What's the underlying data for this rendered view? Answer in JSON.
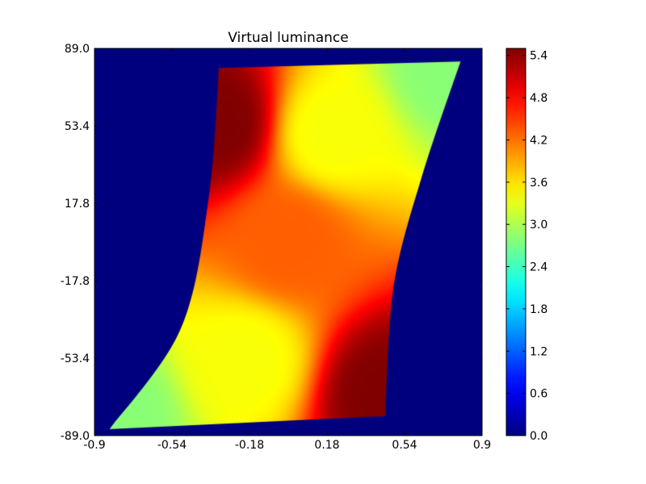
{
  "chart_data": {
    "type": "heatmap",
    "title": "Virtual luminance",
    "xlabel": "",
    "ylabel": "",
    "xlim": [
      -0.9,
      0.9
    ],
    "ylim": [
      -89.0,
      89.0
    ],
    "x_ticks": [
      "-0.9",
      "-0.54",
      "-0.18",
      "0.18",
      "0.54",
      "0.9"
    ],
    "y_ticks": [
      "89.0",
      "53.4",
      "17.8",
      "-17.8",
      "-53.4",
      "-89.0"
    ],
    "background_value": 0.0,
    "colormap": "jet",
    "colorbar": {
      "min": 0.0,
      "max": 5.5,
      "ticks": [
        "0.0",
        "0.6",
        "1.2",
        "1.8",
        "2.4",
        "3.0",
        "3.6",
        "4.2",
        "4.8",
        "5.4"
      ]
    },
    "region": {
      "left_edge": [
        [
          -0.32,
          84
        ],
        [
          -0.37,
          20
        ],
        [
          -0.5,
          -40
        ],
        [
          -0.83,
          -86
        ]
      ],
      "right_edge": [
        [
          0.8,
          83
        ],
        [
          0.62,
          30
        ],
        [
          0.49,
          -20
        ],
        [
          0.45,
          -78
        ]
      ],
      "top_edge": [
        [
          -0.32,
          80
        ],
        [
          0.8,
          83
        ]
      ],
      "bottom_edge": [
        [
          -0.83,
          -86
        ],
        [
          0.45,
          -80
        ]
      ]
    },
    "annotations": [
      {
        "x": -0.33,
        "y": 55,
        "value": 5.5
      },
      {
        "x": 0.45,
        "y": -70,
        "value": 5.5
      },
      {
        "x": 0.75,
        "y": 80,
        "value": 2.8
      },
      {
        "x": -0.8,
        "y": -80,
        "value": 2.8
      },
      {
        "x": 0.2,
        "y": 50,
        "value": 3.4
      },
      {
        "x": -0.2,
        "y": -55,
        "value": 3.4
      },
      {
        "x": 0.0,
        "y": 0,
        "value": 4.3
      }
    ]
  }
}
